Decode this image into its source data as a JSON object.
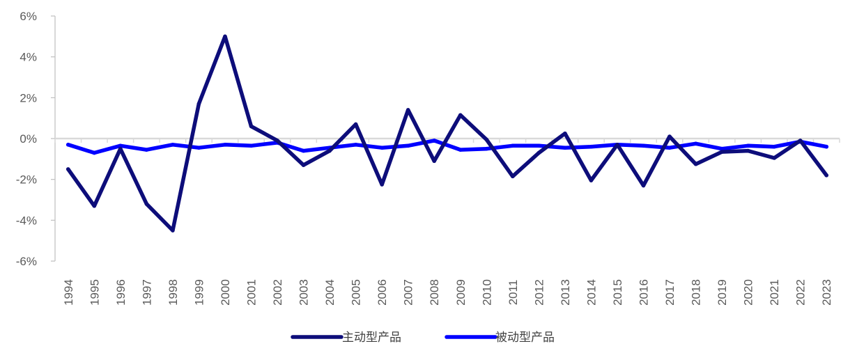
{
  "chart_data": {
    "type": "line",
    "title": "",
    "xlabel": "",
    "ylabel": "",
    "x": [
      "1994",
      "1995",
      "1996",
      "1997",
      "1998",
      "1999",
      "2000",
      "2001",
      "2002",
      "2003",
      "2004",
      "2005",
      "2006",
      "2007",
      "2008",
      "2009",
      "2010",
      "2011",
      "2012",
      "2013",
      "2014",
      "2015",
      "2016",
      "2017",
      "2018",
      "2019",
      "2020",
      "2021",
      "2022",
      "2023"
    ],
    "ylim": [
      -6,
      6
    ],
    "yticks": [
      -6,
      -4,
      -2,
      0,
      2,
      4,
      6
    ],
    "ytick_labels": [
      "-6%",
      "-4%",
      "-2%",
      "0%",
      "2%",
      "4%",
      "6%"
    ],
    "grid": false,
    "legend_position": "bottom",
    "series": [
      {
        "name": "主动型产品",
        "color": "#0d0d7a",
        "values": [
          -1.5,
          -3.3,
          -0.5,
          -3.2,
          -4.5,
          1.7,
          5.0,
          0.6,
          -0.1,
          -1.3,
          -0.6,
          0.7,
          -2.25,
          1.4,
          -1.1,
          1.15,
          -0.05,
          -1.85,
          -0.7,
          0.25,
          -2.05,
          -0.3,
          -2.3,
          0.1,
          -1.25,
          -0.65,
          -0.6,
          -0.95,
          -0.1,
          -1.8
        ]
      },
      {
        "name": "被动型产品",
        "color": "#0000ff",
        "values": [
          -0.3,
          -0.7,
          -0.35,
          -0.55,
          -0.3,
          -0.45,
          -0.3,
          -0.35,
          -0.2,
          -0.6,
          -0.45,
          -0.3,
          -0.45,
          -0.35,
          -0.1,
          -0.55,
          -0.5,
          -0.35,
          -0.35,
          -0.45,
          -0.4,
          -0.3,
          -0.35,
          -0.45,
          -0.25,
          -0.5,
          -0.35,
          -0.4,
          -0.15,
          -0.4
        ]
      }
    ]
  }
}
